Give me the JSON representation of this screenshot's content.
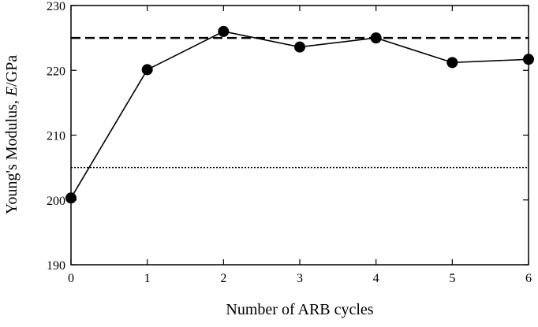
{
  "chart_data": {
    "type": "line",
    "title": "",
    "xlabel": "Number of ARB cycles",
    "ylabel_parts": [
      "Young's Modulus, ",
      "E",
      "/GPa"
    ],
    "xlim": [
      0,
      6
    ],
    "ylim": [
      190,
      230
    ],
    "x_ticks": [
      0,
      1,
      2,
      3,
      4,
      5,
      6
    ],
    "y_ticks": [
      190,
      200,
      210,
      220,
      230
    ],
    "grid": false,
    "series": [
      {
        "x": [
          0,
          1,
          2,
          3,
          4,
          5,
          6
        ],
        "values": [
          200.3,
          220.1,
          226.0,
          223.6,
          225.0,
          221.2,
          221.7
        ],
        "marker": "filled-circle",
        "line_style": "solid",
        "color": "#000000"
      }
    ],
    "reference_lines": [
      {
        "y": 225,
        "style": "dashed",
        "color": "#000000"
      },
      {
        "y": 205,
        "style": "dotted",
        "color": "#000000"
      }
    ]
  }
}
